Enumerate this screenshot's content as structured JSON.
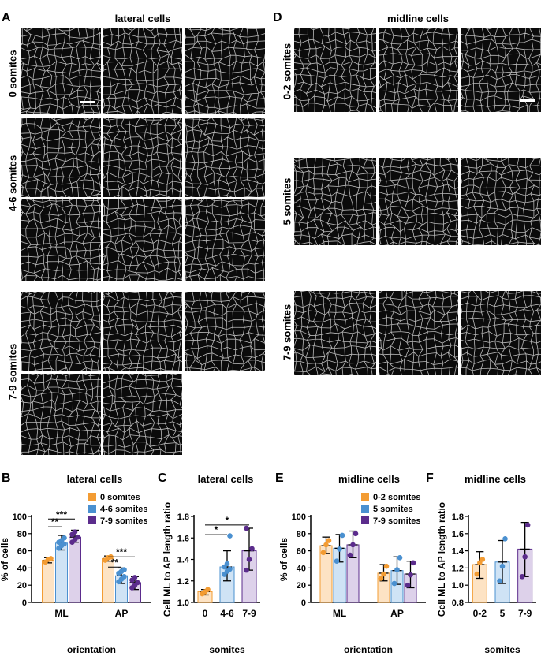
{
  "panels": {
    "A": {
      "label": "A",
      "title": "lateral cells",
      "rows": [
        "0 somites",
        "4-6 somites",
        "7-9 somites"
      ]
    },
    "D": {
      "label": "D",
      "title": "midline cells",
      "rows": [
        "0-2 somites",
        "5 somites",
        "7-9 somites"
      ]
    },
    "B": {
      "label": "B",
      "title": "lateral cells"
    },
    "C": {
      "label": "C",
      "title": "lateral cells"
    },
    "E": {
      "label": "E",
      "title": "midline cells"
    },
    "F": {
      "label": "F",
      "title": "midline cells"
    }
  },
  "colors": {
    "orange": "#f39c33",
    "blue": "#4a90d0",
    "purple": "#5b2c8c",
    "orange_fill": "#fde3c4",
    "blue_fill": "#cfe3f5",
    "purple_fill": "#ddd1ea"
  },
  "chart_data": [
    {
      "id": "B",
      "type": "bar",
      "ylabel": "% of cells",
      "xlabel": "orientation",
      "categories": [
        "ML",
        "AP"
      ],
      "ylim": [
        0,
        100
      ],
      "yticks": [
        0,
        20,
        40,
        60,
        80,
        100
      ],
      "legend": [
        "0 somites",
        "4-6 somites",
        "7-9 somites"
      ],
      "legend_position": "top-right",
      "series": [
        {
          "name": "0 somites",
          "color": "orange",
          "values": [
            49,
            51
          ],
          "err": [
            [
              46,
              52
            ],
            [
              48,
              54
            ]
          ],
          "points": [
            [
              47,
              50,
              51
            ],
            [
              49,
              52,
              53
            ]
          ]
        },
        {
          "name": "4-6 somites",
          "color": "blue",
          "values": [
            69,
            31
          ],
          "err": [
            [
              61,
              78
            ],
            [
              22,
              40
            ]
          ],
          "points": [
            [
              63,
              66,
              68,
              70,
              72,
              75
            ],
            [
              24,
              27,
              30,
              34,
              36,
              38
            ]
          ]
        },
        {
          "name": "7-9 somites",
          "color": "purple",
          "values": [
            76,
            23
          ],
          "err": [
            [
              70,
              84
            ],
            [
              15,
              30
            ]
          ],
          "points": [
            [
              70,
              73,
              76,
              79,
              82
            ],
            [
              17,
              20,
              23,
              26,
              29
            ]
          ]
        }
      ],
      "significance": [
        {
          "label": "**",
          "from": [
            0,
            0
          ],
          "to": [
            0,
            1
          ],
          "y": 88
        },
        {
          "label": "***",
          "from": [
            0,
            0
          ],
          "to": [
            0,
            2
          ],
          "y": 97
        },
        {
          "label": "**",
          "from": [
            1,
            0
          ],
          "to": [
            1,
            1
          ],
          "y": 41
        },
        {
          "label": "***",
          "from": [
            1,
            0
          ],
          "to": [
            1,
            2
          ],
          "y": 53
        }
      ]
    },
    {
      "id": "C",
      "type": "bar",
      "ylabel": "Cell ML to AP length ratio",
      "xlabel": "somites",
      "categories": [
        "0",
        "4-6",
        "7-9"
      ],
      "ylim": [
        1.0,
        1.8
      ],
      "yticks": [
        1.0,
        1.2,
        1.4,
        1.6,
        1.8
      ],
      "series": [
        {
          "name": "",
          "colors": [
            "orange",
            "blue",
            "purple"
          ],
          "values": [
            1.1,
            1.33,
            1.48
          ],
          "err": [
            [
              1.07,
              1.12
            ],
            [
              1.2,
              1.48
            ],
            [
              1.3,
              1.69
            ]
          ],
          "points": [
            [
              1.08,
              1.1,
              1.12
            ],
            [
              1.26,
              1.29,
              1.31,
              1.33,
              1.36,
              1.62
            ],
            [
              1.3,
              1.4,
              1.5,
              1.69
            ]
          ]
        }
      ],
      "significance": [
        {
          "label": "*",
          "from": 0,
          "to": 1,
          "y": 1.63
        },
        {
          "label": "*",
          "from": 0,
          "to": 2,
          "y": 1.72
        }
      ]
    },
    {
      "id": "E",
      "type": "bar",
      "ylabel": "% of cells",
      "xlabel": "orientation",
      "categories": [
        "ML",
        "AP"
      ],
      "ylim": [
        0,
        100
      ],
      "yticks": [
        0,
        20,
        40,
        60,
        80,
        100
      ],
      "legend": [
        "0-2 somites",
        "5 somites",
        "7-9 somites"
      ],
      "legend_position": "top-right",
      "series": [
        {
          "name": "0-2 somites",
          "color": "orange",
          "values": [
            66,
            34
          ],
          "err": [
            [
              57,
              76
            ],
            [
              25,
              44
            ]
          ],
          "points": [
            [
              58,
              67,
              72
            ],
            [
              28,
              33,
              42
            ]
          ]
        },
        {
          "name": "5 somites",
          "color": "blue",
          "values": [
            63,
            37
          ],
          "err": [
            [
              47,
              79
            ],
            [
              21,
              53
            ]
          ],
          "points": [
            [
              48,
              62,
              78
            ],
            [
              22,
              38,
              52
            ]
          ]
        },
        {
          "name": "7-9 somites",
          "color": "purple",
          "values": [
            67,
            33
          ],
          "err": [
            [
              52,
              83
            ],
            [
              17,
              48
            ]
          ],
          "points": [
            [
              55,
              67,
              80
            ],
            [
              20,
              32,
              46
            ]
          ]
        }
      ]
    },
    {
      "id": "F",
      "type": "bar",
      "ylabel": "Cell ML to AP length ratio",
      "xlabel": "somites",
      "categories": [
        "0-2",
        "5",
        "7-9"
      ],
      "ylim": [
        0.8,
        1.8
      ],
      "yticks": [
        0.8,
        1.0,
        1.2,
        1.4,
        1.6,
        1.8
      ],
      "series": [
        {
          "name": "",
          "colors": [
            "orange",
            "blue",
            "purple"
          ],
          "values": [
            1.24,
            1.27,
            1.42
          ],
          "err": [
            [
              1.08,
              1.39
            ],
            [
              1.02,
              1.52
            ],
            [
              1.1,
              1.73
            ]
          ],
          "points": [
            [
              1.13,
              1.26,
              1.3
            ],
            [
              1.05,
              1.22,
              1.54
            ],
            [
              1.1,
              1.33,
              1.7
            ]
          ]
        }
      ]
    }
  ]
}
